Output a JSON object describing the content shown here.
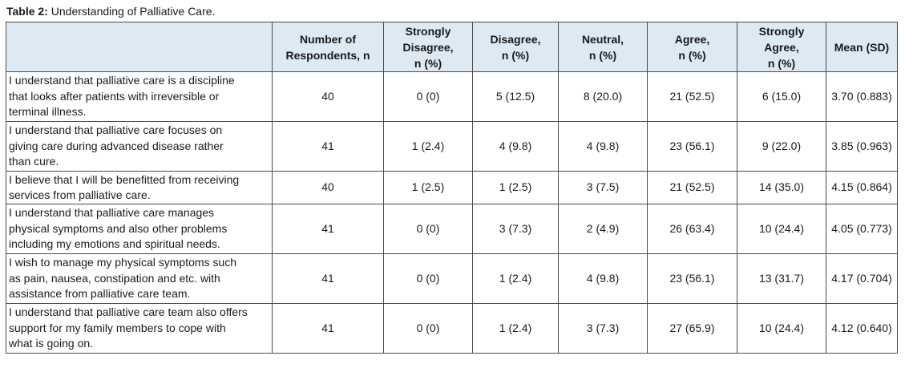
{
  "caption": {
    "label": "Table 2:",
    "text": " Understanding of Palliative Care."
  },
  "headers": {
    "statement": "",
    "respondents": [
      "Number of",
      "Respondents, n"
    ],
    "strongly_disagree": [
      "Strongly",
      "Disagree,",
      "n (%)"
    ],
    "disagree": [
      "Disagree,",
      "n (%)"
    ],
    "neutral": [
      "Neutral,",
      "n (%)"
    ],
    "agree": [
      "Agree,",
      "n (%)"
    ],
    "strongly_agree": [
      "Strongly",
      "Agree,",
      "n (%)"
    ],
    "mean_sd": [
      "Mean (SD)"
    ]
  },
  "rows": [
    {
      "statement": [
        "I understand that palliative care is a discipline",
        "that looks after patients with irreversible or",
        "terminal illness."
      ],
      "respondents": "40",
      "strongly_disagree": "0 (0)",
      "disagree": "5 (12.5)",
      "neutral": "8 (20.0)",
      "agree": "21 (52.5)",
      "strongly_agree": "6 (15.0)",
      "mean_sd": "3.70 (0.883)"
    },
    {
      "statement": [
        "I understand that palliative care focuses on",
        "giving care during advanced disease rather",
        "than cure."
      ],
      "respondents": "41",
      "strongly_disagree": "1 (2.4)",
      "disagree": "4 (9.8)",
      "neutral": "4 (9.8)",
      "agree": "23 (56.1)",
      "strongly_agree": "9 (22.0)",
      "mean_sd": "3.85 (0.963)"
    },
    {
      "statement": [
        "I believe that I will be benefitted from receiving",
        "services from palliative care."
      ],
      "respondents": "40",
      "strongly_disagree": "1 (2.5)",
      "disagree": "1 (2.5)",
      "neutral": "3 (7.5)",
      "agree": "21 (52.5)",
      "strongly_agree": "14 (35.0)",
      "mean_sd": "4.15 (0.864)"
    },
    {
      "statement": [
        "I understand that palliative care manages",
        "physical symptoms and also other problems",
        "including my emotions and spiritual needs."
      ],
      "respondents": "41",
      "strongly_disagree": "0 (0)",
      "disagree": "3 (7.3)",
      "neutral": "2 (4.9)",
      "agree": "26 (63.4)",
      "strongly_agree": "10 (24.4)",
      "mean_sd": "4.05 (0.773)"
    },
    {
      "statement": [
        "I wish to manage my physical symptoms such",
        "as pain, nausea, constipation and etc. with",
        "assistance from palliative care team."
      ],
      "respondents": "41",
      "strongly_disagree": "0 (0)",
      "disagree": "1 (2.4)",
      "neutral": "4 (9.8)",
      "agree": "23 (56.1)",
      "strongly_agree": "13 (31.7)",
      "mean_sd": "4.17 (0.704)"
    },
    {
      "statement": [
        "I understand that palliative care team also offers",
        "support for my family members to cope with",
        "what is going on."
      ],
      "respondents": "41",
      "strongly_disagree": "0 (0)",
      "disagree": "1 (2.4)",
      "neutral": "3 (7.3)",
      "agree": "27 (65.9)",
      "strongly_agree": "10 (24.4)",
      "mean_sd": "4.12 (0.640)"
    }
  ]
}
